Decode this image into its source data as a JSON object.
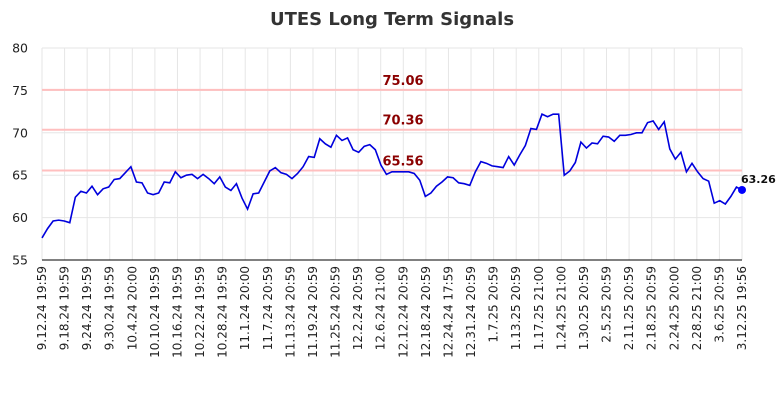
{
  "chart_data": {
    "type": "line",
    "title": "UTES Long Term Signals",
    "ylim": [
      55,
      80
    ],
    "y_ticks": [
      55,
      60,
      65,
      70,
      75,
      80
    ],
    "grid": true,
    "x_tick_labels": [
      "9.12.24 19:59",
      "9.18.24 19:59",
      "9.24.24 19:59",
      "9.30.24 19:59",
      "10.4.24 20:00",
      "10.10.24 19:59",
      "10.16.24 19:59",
      "10.22.24 19:59",
      "10.28.24 19:59",
      "11.1.24 20:00",
      "11.7.24 20:59",
      "11.13.24 20:59",
      "11.19.24 20:59",
      "11.25.24 20:59",
      "12.2.24 20:59",
      "12.6.24 21:00",
      "12.12.24 20:59",
      "12.18.24 20:59",
      "12.24.24 17:59",
      "12.31.24 20:59",
      "1.7.25 20:59",
      "1.13.25 20:59",
      "1.17.25 21:00",
      "1.24.25 21:00",
      "1.30.25 20:59",
      "2.5.25 20:59",
      "2.11.25 20:59",
      "2.18.25 20:59",
      "2.24.25 20:00",
      "2.28.25 21:00",
      "3.6.25 20:59",
      "3.12.25 19:56"
    ],
    "levels": [
      {
        "value": 75.06,
        "label": "75.06"
      },
      {
        "value": 70.36,
        "label": "70.36"
      },
      {
        "value": 65.56,
        "label": "65.56"
      }
    ],
    "last_point": {
      "value": 63.26,
      "label": "63.26"
    },
    "colors": {
      "line": "#0000dd",
      "level": "#ffbfbf",
      "level_text": "#8b0000",
      "grid": "#e6e6e6",
      "dot": "#0000ff"
    },
    "series": [
      {
        "values": [
          57.6,
          58.7,
          59.6,
          59.7,
          59.6,
          59.4,
          62.4,
          63.1,
          62.9,
          63.7,
          62.7,
          63.4,
          63.6,
          64.5,
          64.6,
          65.3,
          66.0,
          64.2,
          64.1,
          62.9,
          62.7,
          62.9,
          64.2,
          64.1,
          65.4,
          64.7,
          65.0,
          65.1,
          64.6,
          65.1,
          64.6,
          64.0,
          64.8,
          63.6,
          63.2,
          64.0,
          62.3,
          61.0,
          62.8,
          62.9,
          64.2,
          65.5,
          65.9,
          65.3,
          65.1,
          64.6,
          65.2,
          66.0,
          67.2,
          67.1,
          69.3,
          68.7,
          68.3,
          69.7,
          69.1,
          69.4,
          68.0,
          67.7,
          68.4,
          68.6,
          68.0,
          66.2,
          65.1,
          65.4,
          65.4,
          65.4,
          65.4,
          65.2,
          64.4,
          62.5,
          62.9,
          63.7,
          64.2,
          64.8,
          64.7,
          64.1,
          64.0,
          63.8,
          65.4,
          66.6,
          66.4,
          66.1,
          66.0,
          65.9,
          67.2,
          66.2,
          67.4,
          68.5,
          70.5,
          70.4,
          72.2,
          71.9,
          72.2,
          72.2,
          65.0,
          65.5,
          66.5,
          68.9,
          68.2,
          68.8,
          68.7,
          69.6,
          69.5,
          69.0,
          69.7,
          69.7,
          69.8,
          70.0,
          70.0,
          71.2,
          71.4,
          70.4,
          71.3,
          68.1,
          66.9,
          67.7,
          65.4,
          66.4,
          65.4,
          64.6,
          64.3,
          61.7,
          62.0,
          61.6,
          62.5,
          63.6,
          63.26
        ]
      }
    ]
  }
}
